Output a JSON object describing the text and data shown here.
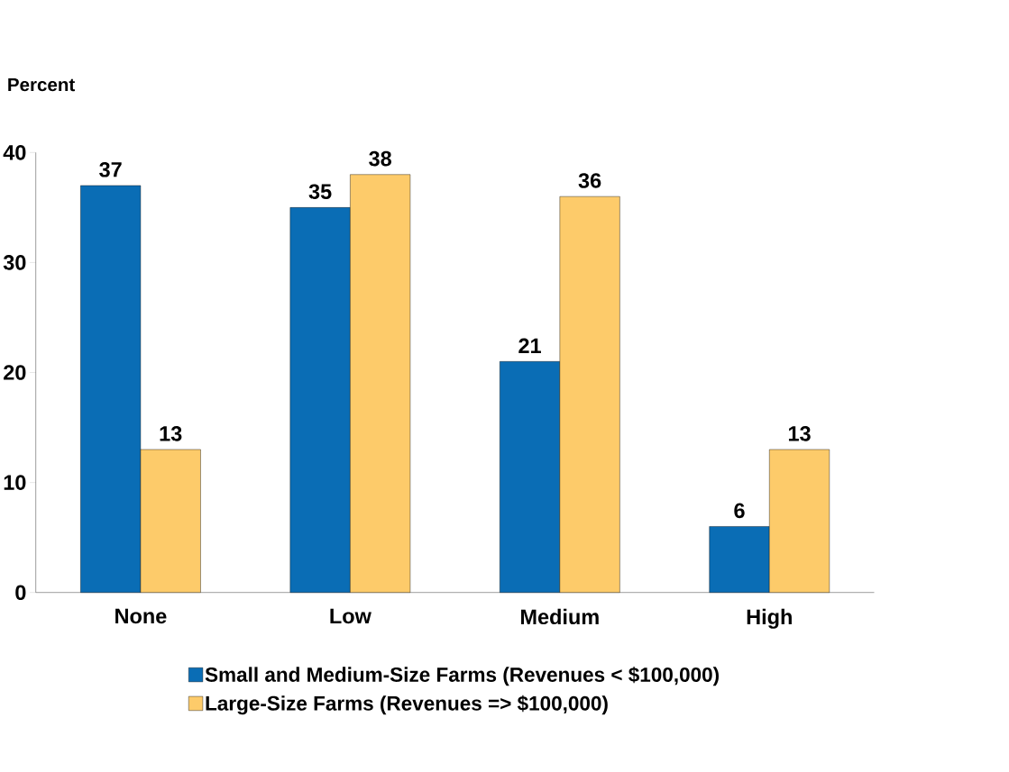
{
  "chart_data": {
    "type": "bar",
    "ylabel": "Percent",
    "categories": [
      "None",
      "Low",
      "Medium",
      "High"
    ],
    "series": [
      {
        "name": "Small and Medium-Size Farms (Revenues < $100,000)",
        "color": "#0a6db5",
        "values": [
          37,
          35,
          21,
          6
        ],
        "value_labels": [
          "37",
          "35",
          "21",
          "6"
        ]
      },
      {
        "name": "Large-Size Farms (Revenues => $100,000)",
        "color": "#fdcb6a",
        "values": [
          13,
          38,
          36,
          13
        ],
        "value_labels": [
          "13",
          "38",
          "36",
          "13"
        ]
      }
    ],
    "ylim": [
      0,
      40
    ],
    "yticks": [
      0,
      10,
      20,
      30,
      40
    ],
    "grid": false,
    "legend": "bottom"
  }
}
